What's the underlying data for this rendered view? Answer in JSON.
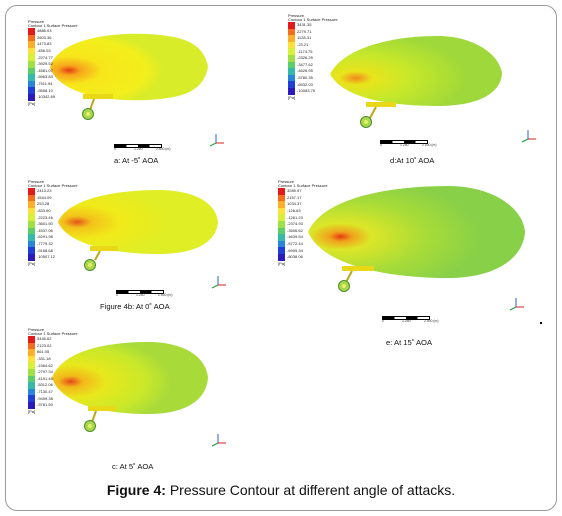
{
  "figure_caption": {
    "label": "Figure 4:",
    "text": "Pressure Contour at different angle of attacks."
  },
  "legend_colors": [
    "#e31a1c",
    "#f46d21",
    "#fdae2a",
    "#fee13a",
    "#d9f03a",
    "#9fe048",
    "#5ccd6a",
    "#36b9a8",
    "#2a86d8",
    "#1f3fd6",
    "#2b1bb8"
  ],
  "panels": [
    {
      "id": "a",
      "caption": "a: At -5˚ AOA",
      "legend_title": "Pressure",
      "legend_subtitle": "Contour 1 Surface Pressure",
      "legend_values": [
        "4886.03",
        "2603.36",
        "1473.83",
        "-456.03",
        "-2274.77",
        "-3929.52",
        "-4581.07",
        "-5963.83",
        "-7911.94",
        "-9558.10",
        "-10342.69"
      ],
      "unit": "[Pa]",
      "scale_left": "0",
      "scale_right": "2.500 (m)",
      "scale_mid": "1.250"
    },
    {
      "id": "b",
      "caption": "Figure 4b: At 0˚ AOA",
      "legend_title": "Pressure",
      "legend_subtitle": "Contour 1 Surface Pressure",
      "legend_values": [
        "2413.23",
        "1544.09",
        "253.28",
        "-833.90",
        "-2223.46",
        "-3601.50",
        "-4937.06",
        "-6291.98",
        "-7779.32",
        "-9168.68",
        "-10507.12"
      ],
      "unit": "[Pa]",
      "scale_left": "0",
      "scale_right": "2.500 (m)",
      "scale_mid": "1.250"
    },
    {
      "id": "c",
      "caption": "c: At 5˚ AOA",
      "legend_title": "Pressure",
      "legend_subtitle": "Contour 1 Surface Pressure",
      "legend_values": [
        "3446.62",
        "2123.02",
        "861.05",
        "-331.18",
        "-1564.62",
        "-2797.34",
        "-4191.45",
        "-5312.06",
        "-7130.47",
        "-9459.38",
        "-9781.50"
      ],
      "unit": "[Pa]",
      "scale_left": "0",
      "scale_right": "2.500 (m)",
      "scale_mid": "1.250"
    },
    {
      "id": "d",
      "caption": "d:At 10˚ AOA",
      "legend_title": "Pressure",
      "legend_subtitle": "Contour 1 Surface Pressure",
      "legend_values": [
        "3431.35",
        "2279.71",
        "1128.31",
        "-23.21",
        "-1174.75",
        "-2326.25",
        "-3477.62",
        "-4626.95",
        "-5780.35",
        "-6932.03",
        "-10083.75"
      ],
      "unit": "[Pa]",
      "scale_left": "0",
      "scale_right": "2.500 (m)",
      "scale_mid": "1.250"
    },
    {
      "id": "e",
      "caption": "e: At 15˚ AOA",
      "legend_title": "Pressure",
      "legend_subtitle": "Contour 1 Surface Pressure",
      "legend_values": [
        "3289.97",
        "2157.17",
        "1034.37",
        "-126.63",
        "-1261.23",
        "-2374.93",
        "-3506.62",
        "-4639.54",
        "-5772.44",
        "-6905.34",
        "-8038.06"
      ],
      "unit": "[Pa]",
      "scale_left": "0",
      "scale_right": "2.500 (m)",
      "scale_mid": "1.250"
    }
  ]
}
